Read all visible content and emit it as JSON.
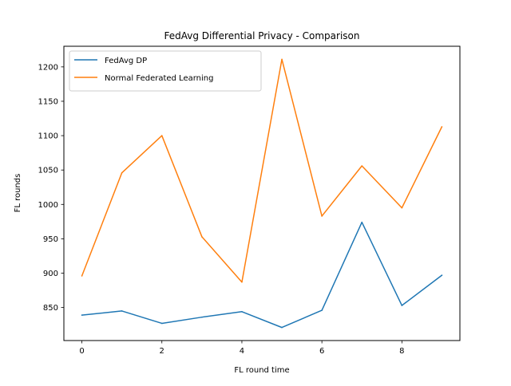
{
  "chart_data": {
    "type": "line",
    "title": "FedAvg Differential Privacy - Comparison",
    "xlabel": "FL round time",
    "ylabel": "FL rounds",
    "x": [
      0,
      1,
      2,
      3,
      4,
      5,
      6,
      7,
      8,
      9
    ],
    "xlim": [
      -0.45,
      9.45
    ],
    "ylim": [
      802,
      1230
    ],
    "xticks": [
      0,
      2,
      4,
      6,
      8
    ],
    "yticks": [
      850,
      900,
      950,
      1000,
      1050,
      1100,
      1150,
      1200
    ],
    "grid": false,
    "legend_position": "upper-left",
    "series": [
      {
        "name": "FedAvg DP",
        "color": "#1f77b4",
        "values": [
          839,
          845,
          827,
          836,
          844,
          821,
          846,
          974,
          853,
          897
        ]
      },
      {
        "name": "Normal Federated Learning",
        "color": "#ff7f0e",
        "values": [
          896,
          1046,
          1100,
          953,
          887,
          1211,
          983,
          1056,
          995,
          1113
        ]
      }
    ]
  }
}
